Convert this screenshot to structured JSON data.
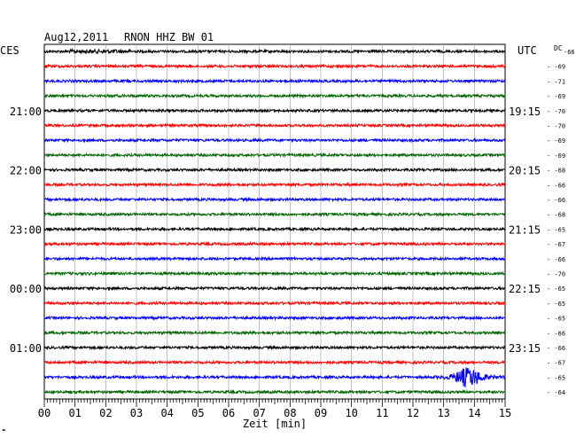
{
  "header": {
    "date": "Aug12,2011",
    "station": "RNON HHZ BW 01",
    "left_tz": "CES",
    "right_tz": "UTC",
    "dc_label": "DC"
  },
  "footer": {
    "xlabel": "Zeit [min]",
    "corner_mark": "☂"
  },
  "chart_data": {
    "type": "line",
    "title": "Aug12,2011   RNON HHZ BW 01",
    "xlabel": "Zeit [min]",
    "xlim": [
      0,
      15
    ],
    "x_ticks": [
      "00",
      "01",
      "02",
      "03",
      "04",
      "05",
      "06",
      "07",
      "08",
      "09",
      "10",
      "11",
      "12",
      "13",
      "14",
      "15"
    ],
    "grid": true,
    "trace_colors": [
      "#000000",
      "#ff0000",
      "#0000ff",
      "#006400"
    ],
    "left_hour_labels": [
      {
        "trace": 0,
        "label": ""
      },
      {
        "trace": 4,
        "label": "21:00"
      },
      {
        "trace": 8,
        "label": "22:00"
      },
      {
        "trace": 12,
        "label": "23:00"
      },
      {
        "trace": 16,
        "label": "00:00"
      },
      {
        "trace": 20,
        "label": "01:00"
      }
    ],
    "right_hour_labels": [
      {
        "trace": 4,
        "label": "19:15"
      },
      {
        "trace": 8,
        "label": "20:15"
      },
      {
        "trace": 12,
        "label": "21:15"
      },
      {
        "trace": 16,
        "label": "22:15"
      },
      {
        "trace": 20,
        "label": "23:15"
      }
    ],
    "dc_offsets": [
      -66,
      -69,
      -71,
      -69,
      -70,
      -70,
      -69,
      -69,
      -68,
      -66,
      -66,
      -68,
      -65,
      -67,
      -66,
      -70,
      -65,
      -65,
      -65,
      -66,
      -66,
      -67,
      -65,
      -64
    ],
    "event": {
      "trace": 22,
      "center_min": 13.8,
      "onset_min": 12.7,
      "label": ""
    }
  }
}
